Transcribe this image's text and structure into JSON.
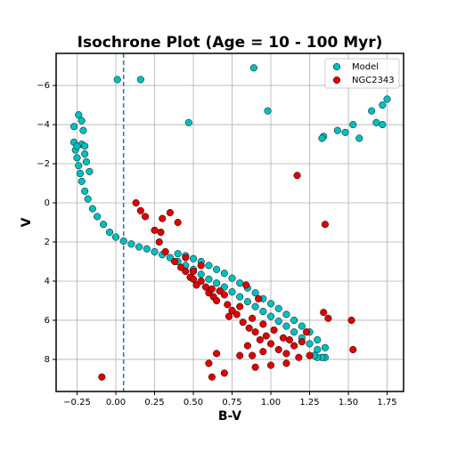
{
  "chart_data": {
    "type": "scatter",
    "title": "Isochrone Plot (Age = 10 - 100 Myr)",
    "x_label": "B-V",
    "y_label": "V",
    "xlim": [
      -0.385,
      1.856
    ],
    "ylim": [
      9.64,
      -7.64
    ],
    "xticks": [
      {
        "value": -0.25,
        "label": "−0.25"
      },
      {
        "value": 0,
        "label": "0.00"
      },
      {
        "value": 0.25,
        "label": "0.25"
      },
      {
        "value": 0.5,
        "label": "0.50"
      },
      {
        "value": 0.75,
        "label": "0.75"
      },
      {
        "value": 1,
        "label": "1.00"
      },
      {
        "value": 1.25,
        "label": "1.25"
      },
      {
        "value": 1.5,
        "label": "1.50"
      },
      {
        "value": 1.75,
        "label": "1.75"
      }
    ],
    "yticks": [
      {
        "value": -6,
        "label": "−6"
      },
      {
        "value": -4,
        "label": "−4"
      },
      {
        "value": -2,
        "label": "−2"
      },
      0,
      2,
      4,
      6,
      8
    ],
    "grid": true,
    "legend": "upper right",
    "reference_line": {
      "x": 0.05,
      "style": "dashed",
      "color": "#1f77b4"
    },
    "series": [
      {
        "name": "Model",
        "color": "#00bfbf",
        "x": [
          -0.27,
          -0.26,
          -0.25,
          -0.24,
          -0.23,
          -0.22,
          -0.2,
          -0.18,
          -0.15,
          -0.12,
          -0.08,
          -0.04,
          0,
          0.05,
          0.1,
          0.15,
          0.2,
          -0.22,
          -0.2,
          -0.19,
          -0.17,
          -0.2,
          -0.25,
          0.25,
          0.3,
          0.35,
          0.4,
          0.45,
          0.5,
          0.55,
          0.6,
          0.65,
          0.7,
          0.75,
          0.8,
          0.85,
          0.9,
          0.95,
          1.0,
          1.05,
          1.1,
          1.15,
          1.2,
          1.25,
          1.3,
          1.35,
          0.4,
          0.45,
          0.5,
          0.55,
          0.6,
          0.65,
          0.7,
          0.75,
          0.8,
          0.85,
          0.9,
          0.95,
          1.0,
          1.05,
          1.1,
          1.15,
          1.2,
          1.25,
          1.3,
          1.35,
          1.33,
          1.3,
          1.28,
          0.01,
          0.16,
          0.47,
          0.89,
          0.98,
          1.75,
          1.72,
          1.65,
          1.68,
          1.72,
          1.53,
          1.48,
          1.43,
          1.57,
          1.34,
          1.33,
          -0.24,
          -0.27,
          -0.22,
          -0.21
        ],
        "values": [
          -3.1,
          -2.7,
          -2.3,
          -1.9,
          -1.5,
          -1.1,
          -0.6,
          -0.2,
          0.3,
          0.7,
          1.1,
          1.5,
          1.75,
          1.95,
          2.1,
          2.25,
          2.35,
          -3.0,
          -2.5,
          -2.1,
          -1.6,
          -2.9,
          -2.9,
          2.5,
          2.65,
          2.8,
          3.0,
          3.2,
          3.4,
          3.65,
          3.9,
          4.1,
          4.3,
          4.55,
          4.8,
          5.05,
          5.3,
          5.55,
          5.8,
          6.05,
          6.3,
          6.6,
          6.9,
          7.2,
          7.5,
          7.9,
          2.6,
          2.7,
          2.85,
          3.0,
          3.2,
          3.4,
          3.6,
          3.85,
          4.1,
          4.35,
          4.6,
          4.9,
          5.15,
          5.4,
          5.7,
          6.0,
          6.3,
          6.6,
          7.0,
          7.4,
          7.9,
          7.9,
          7.8,
          -6.3,
          -6.3,
          -4.1,
          -6.9,
          -4.7,
          -5.3,
          -5.0,
          -4.7,
          -4.1,
          -4.0,
          -4.0,
          -3.6,
          -3.7,
          -3.3,
          -3.4,
          -3.3,
          -4.5,
          -3.9,
          -4.2,
          -3.7
        ]
      },
      {
        "name": "NGC2343",
        "color": "#e00000",
        "x": [
          0.13,
          0.16,
          0.19,
          0.3,
          0.35,
          0.4,
          0.25,
          0.29,
          0.28,
          0.32,
          1.17,
          1.35,
          -0.09,
          0.62,
          0.6,
          0.65,
          0.7,
          0.9,
          1.0,
          1.1,
          1.34,
          1.37,
          1.52,
          1.53,
          0.42,
          0.45,
          0.48,
          0.5,
          0.52,
          0.55,
          0.58,
          0.6,
          0.62,
          0.63,
          0.65,
          0.67,
          0.7,
          0.72,
          0.73,
          0.75,
          0.78,
          0.8,
          0.82,
          0.84,
          0.86,
          0.88,
          0.9,
          0.92,
          0.93,
          0.95,
          0.97,
          1.0,
          1.02,
          1.05,
          1.08,
          1.1,
          1.12,
          1.15,
          1.18,
          1.2,
          1.23,
          1.25,
          0.85,
          0.88,
          0.95,
          0.8,
          0.5,
          0.55,
          0.45,
          0.38
        ],
        "values": [
          0.0,
          0.4,
          0.7,
          0.8,
          0.5,
          1.0,
          1.4,
          1.5,
          2.0,
          2.5,
          -1.4,
          1.1,
          8.9,
          8.9,
          8.2,
          7.7,
          8.7,
          8.4,
          8.3,
          8.2,
          5.6,
          5.9,
          6.0,
          7.5,
          3.3,
          3.5,
          3.8,
          3.9,
          4.2,
          4.0,
          4.3,
          4.6,
          4.4,
          4.8,
          5.0,
          4.5,
          4.7,
          5.2,
          5.8,
          5.5,
          5.7,
          5.3,
          6.1,
          4.2,
          6.4,
          5.9,
          6.6,
          4.9,
          7.0,
          6.2,
          6.8,
          7.2,
          6.5,
          7.5,
          6.9,
          7.7,
          7.0,
          7.3,
          7.9,
          7.1,
          6.6,
          7.8,
          7.3,
          7.8,
          7.6,
          7.8,
          3.5,
          3.2,
          2.8,
          3.0
        ]
      }
    ]
  }
}
